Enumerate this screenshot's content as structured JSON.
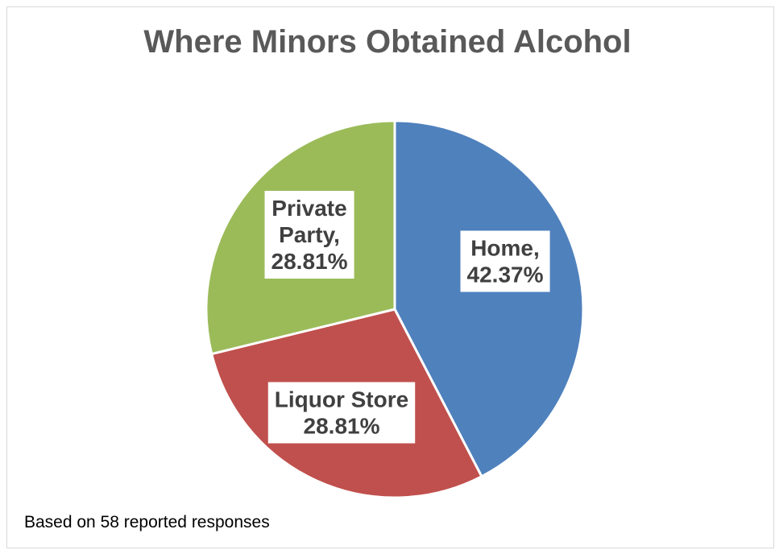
{
  "footnote": "Based on 58 reported responses",
  "chart_data": {
    "type": "pie",
    "title": "Where Minors Obtained Alcohol",
    "start_angle_deg": 0,
    "direction": "clockwise",
    "slices": [
      {
        "name": "Home",
        "value": 42.37,
        "label_lines": [
          "Home,",
          "42.37%"
        ],
        "color": "#4F81BD"
      },
      {
        "name": "Liquor Store",
        "value": 28.81,
        "label_lines": [
          "Liquor Store",
          "28.81%"
        ],
        "color": "#C0504D"
      },
      {
        "name": "Private Party",
        "value": 28.81,
        "label_lines": [
          "Private",
          "Party,",
          "28.81%"
        ],
        "color": "#9BBB59"
      }
    ]
  }
}
